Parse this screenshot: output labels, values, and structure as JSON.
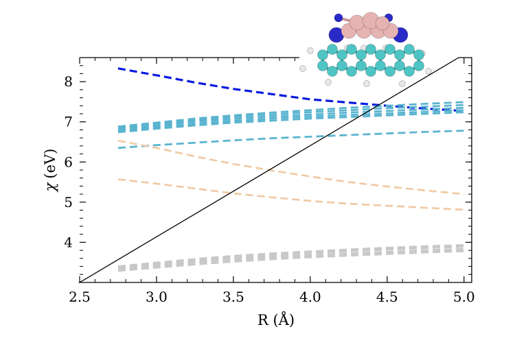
{
  "chart_data": {
    "type": "line",
    "title": "",
    "xlabel": "R (Å)",
    "ylabel_symbol": "χ",
    "ylabel_unit": "(eV)",
    "xlim": [
      2.5,
      5.05
    ],
    "ylim": [
      3.0,
      8.6
    ],
    "xticks": [
      "2.5",
      "3.0",
      "3.5",
      "4.0",
      "4.5",
      "5.0"
    ],
    "yticks": [
      "4",
      "5",
      "6",
      "7",
      "8"
    ],
    "grid": false,
    "legend": "none",
    "x": [
      2.75,
      3.0,
      3.25,
      3.5,
      3.75,
      4.0,
      4.25,
      4.5,
      4.75,
      5.0
    ],
    "series": [
      {
        "color": "#0a1be0",
        "width": 3.2,
        "values": [
          8.33,
          8.16,
          7.98,
          7.82,
          7.69,
          7.56,
          7.48,
          7.4,
          7.33,
          7.27
        ]
      },
      {
        "color": "#5ab4d0",
        "width": 2.8,
        "values": [
          6.88,
          6.98,
          7.08,
          7.16,
          7.23,
          7.29,
          7.35,
          7.4,
          7.45,
          7.49
        ]
      },
      {
        "color": "#5ab4d0",
        "width": 2.8,
        "values": [
          6.85,
          6.95,
          7.04,
          7.12,
          7.18,
          7.24,
          7.29,
          7.34,
          7.38,
          7.42
        ]
      },
      {
        "color": "#5ab4d0",
        "width": 2.8,
        "values": [
          6.82,
          6.91,
          7.0,
          7.07,
          7.13,
          7.18,
          7.23,
          7.27,
          7.31,
          7.35
        ]
      },
      {
        "color": "#5ab4d0",
        "width": 2.8,
        "values": [
          6.78,
          6.87,
          6.95,
          7.02,
          7.08,
          7.13,
          7.17,
          7.21,
          7.25,
          7.29
        ]
      },
      {
        "color": "#5ab4d0",
        "width": 2.8,
        "values": [
          6.74,
          6.83,
          6.91,
          6.98,
          7.03,
          7.08,
          7.12,
          7.16,
          7.2,
          7.24
        ]
      },
      {
        "color": "#5ab4d0",
        "width": 2.8,
        "values": [
          6.35,
          6.42,
          6.48,
          6.54,
          6.59,
          6.63,
          6.67,
          6.71,
          6.75,
          6.78
        ]
      },
      {
        "color": "#f0cba7",
        "width": 2.8,
        "values": [
          6.53,
          6.35,
          6.14,
          5.95,
          5.79,
          5.64,
          5.5,
          5.39,
          5.29,
          5.2
        ]
      },
      {
        "color": "#f0cba7",
        "width": 2.8,
        "values": [
          5.57,
          5.46,
          5.34,
          5.22,
          5.12,
          5.03,
          4.96,
          4.91,
          4.86,
          4.81
        ]
      },
      {
        "color": "#c8c8c8",
        "width": 3.0,
        "values": [
          3.4,
          3.49,
          3.58,
          3.66,
          3.72,
          3.77,
          3.82,
          3.86,
          3.9,
          3.93
        ]
      },
      {
        "color": "#c8c8c8",
        "width": 3.0,
        "values": [
          3.36,
          3.45,
          3.54,
          3.62,
          3.68,
          3.73,
          3.78,
          3.82,
          3.86,
          3.89
        ]
      },
      {
        "color": "#c8c8c8",
        "width": 3.0,
        "values": [
          3.32,
          3.41,
          3.5,
          3.57,
          3.63,
          3.68,
          3.72,
          3.76,
          3.8,
          3.83
        ]
      },
      {
        "color": "#c8c8c8",
        "width": 3.0,
        "values": [
          3.29,
          3.37,
          3.45,
          3.52,
          3.58,
          3.63,
          3.67,
          3.71,
          3.75,
          3.78
        ]
      }
    ]
  },
  "inset": {
    "dimer_colors": {
      "atom": "#e6b3b3",
      "bond": "#c99898",
      "n_end": "#2a2ac8"
    },
    "molecule_colors": {
      "carbon": "#4fc4c4",
      "hydrogen": "#e8e8e8",
      "bond": "#45a8a8"
    }
  }
}
